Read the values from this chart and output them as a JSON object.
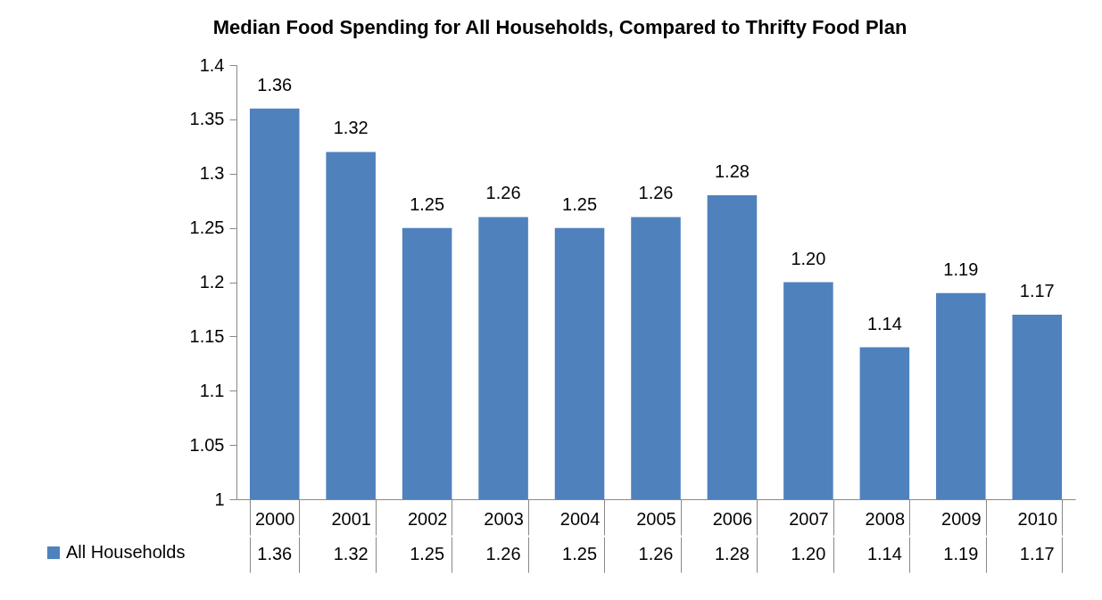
{
  "chart_data": {
    "type": "bar",
    "title": "Median Food Spending for All Households, Compared to Thrifty Food Plan",
    "categories": [
      "2000",
      "2001",
      "2002",
      "2003",
      "2004",
      "2005",
      "2006",
      "2007",
      "2008",
      "2009",
      "2010"
    ],
    "series": [
      {
        "name": "All Households",
        "color": "#4f81bd",
        "values": [
          1.36,
          1.32,
          1.25,
          1.26,
          1.25,
          1.26,
          1.28,
          1.2,
          1.14,
          1.19,
          1.17
        ],
        "value_labels": [
          "1.36",
          "1.32",
          "1.25",
          "1.26",
          "1.25",
          "1.26",
          "1.28",
          "1.20",
          "1.14",
          "1.19",
          "1.17"
        ]
      }
    ],
    "ylim": [
      1,
      1.4
    ],
    "yticks": [
      1,
      1.05,
      1.1,
      1.15,
      1.2,
      1.25,
      1.3,
      1.35,
      1.4
    ],
    "legend": "bottom left"
  }
}
